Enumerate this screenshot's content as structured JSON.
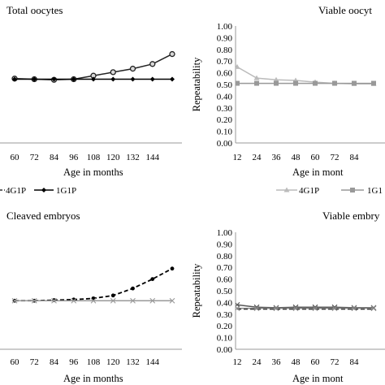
{
  "chart_data": [
    {
      "type": "line",
      "title": "Total oocytes",
      "xlabel": "Age in months",
      "ylabel": "",
      "x_visible": [
        "60",
        "72",
        "84",
        "96",
        "108",
        "120",
        "132",
        "144"
      ],
      "ylim": [
        0.0,
        1.0
      ],
      "series": [
        {
          "name": "4G1P",
          "color": "#222222",
          "marker": "circle-hollow",
          "line": "solid",
          "x": [
            48,
            60,
            72,
            84,
            96,
            108,
            120,
            132,
            144
          ],
          "values": [
            0.55,
            0.545,
            0.54,
            0.545,
            0.575,
            0.605,
            0.635,
            0.675,
            0.76
          ]
        },
        {
          "name": "1G1P",
          "color": "#000000",
          "marker": "diamond",
          "line": "solid",
          "x": [
            48,
            60,
            72,
            84,
            96,
            108,
            120,
            132,
            144
          ],
          "values": [
            0.545,
            0.545,
            0.545,
            0.545,
            0.545,
            0.545,
            0.545,
            0.545,
            0.545
          ]
        }
      ],
      "legend": [
        "4G1P",
        "1G1P"
      ],
      "legend_position": "bottom"
    },
    {
      "type": "line",
      "title": "Viable oocyt",
      "xlabel": "Age in mont",
      "ylabel": "Repeatability",
      "x_visible": [
        "12",
        "24",
        "36",
        "48",
        "60",
        "72",
        "84"
      ],
      "y_ticks": [
        "0.00",
        "0.10",
        "0.20",
        "0.30",
        "0.40",
        "0.50",
        "0.60",
        "0.70",
        "0.80",
        "0.90",
        "1.00"
      ],
      "ylim": [
        0.0,
        1.0
      ],
      "series": [
        {
          "name": "4G1P",
          "color": "#bbbbbb",
          "marker": "triangle",
          "line": "solid",
          "x": [
            12,
            24,
            36,
            48,
            60,
            72,
            84,
            96
          ],
          "values": [
            0.65,
            0.555,
            0.54,
            0.535,
            0.52,
            0.51,
            0.505,
            0.505
          ]
        },
        {
          "name": "1G1",
          "color": "#999999",
          "marker": "square",
          "line": "solid",
          "x": [
            12,
            24,
            36,
            48,
            60,
            72,
            84,
            96
          ],
          "values": [
            0.51,
            0.51,
            0.51,
            0.51,
            0.51,
            0.51,
            0.51,
            0.51
          ]
        }
      ],
      "legend": [
        "4G1P",
        "1G1"
      ],
      "legend_position": "bottom"
    },
    {
      "type": "line",
      "title": "Cleaved embryos",
      "xlabel": "Age in months",
      "ylabel": "",
      "x_visible": [
        "60",
        "72",
        "84",
        "96",
        "108",
        "120",
        "132",
        "144"
      ],
      "ylim": [
        0.0,
        1.0
      ],
      "series": [
        {
          "name": "",
          "color": "#000000",
          "marker": "dot",
          "line": "dashed",
          "x": [
            48,
            60,
            72,
            84,
            96,
            108,
            120,
            132,
            144
          ],
          "values": [
            0.415,
            0.415,
            0.42,
            0.425,
            0.435,
            0.46,
            0.52,
            0.6,
            0.69
          ]
        },
        {
          "name": "",
          "color": "#999999",
          "marker": "x",
          "line": "solid",
          "x": [
            48,
            60,
            72,
            84,
            96,
            108,
            120,
            132,
            144
          ],
          "values": [
            0.415,
            0.415,
            0.415,
            0.415,
            0.415,
            0.415,
            0.415,
            0.415,
            0.415
          ]
        }
      ]
    },
    {
      "type": "line",
      "title": "Viable embry",
      "xlabel": "Age in mont",
      "ylabel": "Repeatability",
      "x_visible": [
        "12",
        "24",
        "36",
        "48",
        "60",
        "72",
        "84"
      ],
      "y_ticks": [
        "0.00",
        "0.10",
        "0.20",
        "0.30",
        "0.40",
        "0.50",
        "0.60",
        "0.70",
        "0.80",
        "0.90",
        "1.00"
      ],
      "ylim": [
        0.0,
        1.0
      ],
      "series": [
        {
          "name": "",
          "color": "#555555",
          "marker": "x",
          "line": "solid",
          "x": [
            12,
            24,
            36,
            48,
            60,
            72,
            84,
            96
          ],
          "values": [
            0.38,
            0.36,
            0.355,
            0.36,
            0.36,
            0.36,
            0.355,
            0.355
          ]
        },
        {
          "name": "",
          "color": "#000000",
          "marker": "none",
          "line": "dashed",
          "x": [
            12,
            24,
            36,
            48,
            60,
            72,
            84,
            96
          ],
          "values": [
            0.345,
            0.345,
            0.345,
            0.345,
            0.345,
            0.345,
            0.345,
            0.345
          ]
        },
        {
          "name": "",
          "color": "#888888",
          "marker": "x",
          "line": "solid",
          "x": [
            12,
            24,
            36,
            48,
            60,
            72,
            84,
            96
          ],
          "values": [
            0.35,
            0.35,
            0.35,
            0.35,
            0.35,
            0.35,
            0.35,
            0.35
          ]
        }
      ]
    }
  ]
}
